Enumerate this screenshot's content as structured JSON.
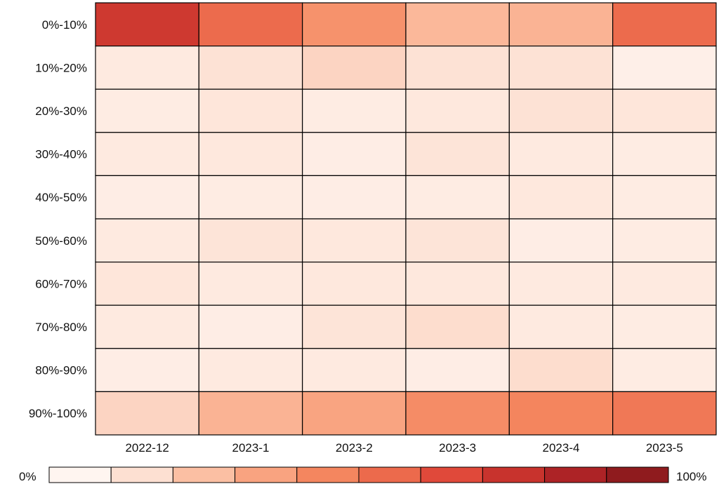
{
  "chart_data": {
    "type": "heatmap",
    "title": "",
    "xlabel": "",
    "ylabel": "",
    "x_categories": [
      "2022-12",
      "2023-1",
      "2023-2",
      "2023-3",
      "2023-4",
      "2023-5"
    ],
    "y_categories": [
      "0%-10%",
      "10%-20%",
      "20%-30%",
      "30%-40%",
      "40%-50%",
      "50%-60%",
      "60%-70%",
      "70%-80%",
      "80%-90%",
      "90%-100%"
    ],
    "values_percent": [
      [
        75,
        55,
        40,
        25,
        27,
        55
      ],
      [
        6,
        10,
        15,
        10,
        10,
        3
      ],
      [
        5,
        8,
        5,
        7,
        10,
        8
      ],
      [
        6,
        7,
        4,
        9,
        6,
        5
      ],
      [
        4,
        5,
        4,
        5,
        7,
        5
      ],
      [
        6,
        9,
        7,
        9,
        4,
        5
      ],
      [
        8,
        6,
        7,
        7,
        6,
        6
      ],
      [
        6,
        4,
        9,
        12,
        6,
        5
      ],
      [
        4,
        6,
        6,
        4,
        12,
        5
      ],
      [
        15,
        27,
        33,
        42,
        45,
        50
      ]
    ],
    "colorbar": {
      "min_label": "0%",
      "max_label": "100%",
      "range": [
        0,
        100
      ],
      "steps": 10,
      "colors": [
        "#fff5f0",
        "#fde0d2",
        "#fbbfa3",
        "#f9a380",
        "#f4865f",
        "#ec6a4c",
        "#e0493a",
        "#c8332d",
        "#ad2326",
        "#8f1b1e"
      ]
    },
    "grid": true,
    "legend": "bottom colorbar"
  }
}
